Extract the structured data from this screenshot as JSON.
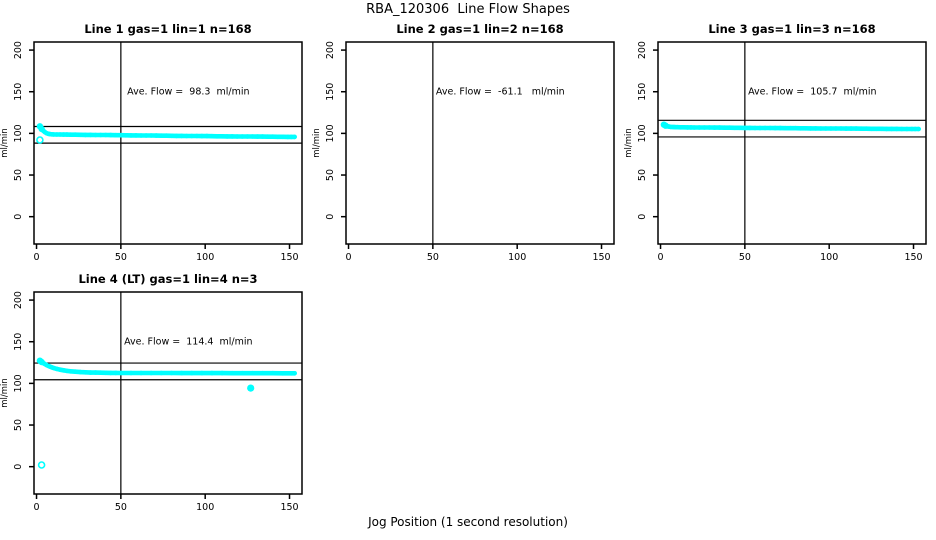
{
  "title": "RBA_120306  Line Flow Shapes",
  "xlabel": "Jog Position (1 second resolution)",
  "colors": {
    "point_color": "#00ffff",
    "axis_color": "#000000",
    "background": "#ffffff"
  },
  "chart_data": [
    {
      "type": "scatter",
      "position": "top-left",
      "title": "Line 1 gas=1 lin=1 n=168",
      "ave_flow": 98.3,
      "ave_flow_label": "Ave. Flow =  98.3  ml/min",
      "ylabel": "ml/min",
      "x_ticks": [
        0,
        50,
        100,
        150
      ],
      "y_ticks": [
        0,
        50,
        100,
        150,
        200
      ],
      "xlim": [
        -1.5,
        157.4
      ],
      "ylim": [
        -32.8,
        209.7
      ],
      "vline_x": 50,
      "hlines": [
        108.3,
        88.3
      ],
      "series_points": [
        [
          2,
          108.5
        ],
        [
          3,
          105.4
        ],
        [
          4,
          103.1
        ],
        [
          5,
          101.4
        ],
        [
          6,
          100.2
        ],
        [
          7,
          99.5
        ],
        [
          8,
          99.1
        ],
        [
          9,
          98.9
        ],
        [
          10,
          98.8
        ],
        [
          12,
          98.6
        ],
        [
          14,
          98.6
        ],
        [
          16,
          98.5
        ],
        [
          18,
          98.5
        ],
        [
          20,
          98.4
        ],
        [
          23,
          98.4
        ],
        [
          26,
          98.3
        ],
        [
          29,
          98.2
        ],
        [
          32,
          98.2
        ],
        [
          35,
          98.1
        ],
        [
          38,
          98.0
        ],
        [
          41,
          98.0
        ],
        [
          44,
          97.9
        ],
        [
          47,
          97.8
        ],
        [
          50,
          97.8
        ],
        [
          53,
          97.7
        ],
        [
          56,
          97.6
        ],
        [
          59,
          97.6
        ],
        [
          62,
          97.5
        ],
        [
          65,
          97.4
        ],
        [
          68,
          97.4
        ],
        [
          71,
          97.3
        ],
        [
          74,
          97.2
        ],
        [
          77,
          97.2
        ],
        [
          80,
          97.1
        ],
        [
          83,
          97.0
        ],
        [
          86,
          97.0
        ],
        [
          89,
          96.9
        ],
        [
          92,
          96.8
        ],
        [
          95,
          96.8
        ],
        [
          98,
          96.7
        ],
        [
          101,
          96.7
        ],
        [
          104,
          96.6
        ],
        [
          107,
          96.5
        ],
        [
          110,
          96.5
        ],
        [
          113,
          96.4
        ],
        [
          116,
          96.4
        ],
        [
          119,
          96.3
        ],
        [
          122,
          96.3
        ],
        [
          125,
          96.2
        ],
        [
          128,
          96.2
        ],
        [
          131,
          96.1
        ],
        [
          134,
          96.1
        ],
        [
          137,
          96.0
        ],
        [
          140,
          96.0
        ],
        [
          143,
          95.9
        ],
        [
          146,
          95.9
        ],
        [
          149,
          95.8
        ],
        [
          151,
          95.8
        ],
        [
          153,
          95.8
        ]
      ],
      "open_points": [
        [
          2,
          92
        ]
      ],
      "filled_outliers": []
    },
    {
      "type": "scatter",
      "position": "top-middle",
      "title": "Line 2 gas=1 lin=2 n=168",
      "ave_flow": -61.1,
      "ave_flow_label": "Ave. Flow =  -61.1   ml/min",
      "ylabel": "ml/min",
      "x_ticks": [
        0,
        50,
        100,
        150
      ],
      "y_ticks": [
        0,
        50,
        100,
        150,
        200
      ],
      "xlim": [
        -1.5,
        157.4
      ],
      "ylim": [
        -32.8,
        209.7
      ],
      "vline_x": 50,
      "hlines": [],
      "series_points": [],
      "open_points": [],
      "filled_outliers": []
    },
    {
      "type": "scatter",
      "position": "top-right",
      "title": "Line 3 gas=1 lin=3 n=168",
      "ave_flow": 105.7,
      "ave_flow_label": "Ave. Flow =  105.7  ml/min",
      "ylabel": "ml/min",
      "x_ticks": [
        0,
        50,
        100,
        150
      ],
      "y_ticks": [
        0,
        50,
        100,
        150,
        200
      ],
      "xlim": [
        -1.5,
        157.4
      ],
      "ylim": [
        -32.8,
        209.7
      ],
      "vline_x": 50,
      "hlines": [
        115.7,
        95.7
      ],
      "series_points": [
        [
          2,
          110.4
        ],
        [
          3,
          109.2
        ],
        [
          4,
          108.5
        ],
        [
          5,
          108.1
        ],
        [
          6,
          107.8
        ],
        [
          7,
          107.6
        ],
        [
          8,
          107.5
        ],
        [
          9,
          107.4
        ],
        [
          10,
          107.4
        ],
        [
          12,
          107.3
        ],
        [
          14,
          107.3
        ],
        [
          16,
          107.2
        ],
        [
          18,
          107.2
        ],
        [
          20,
          107.1
        ],
        [
          23,
          107.1
        ],
        [
          26,
          107.0
        ],
        [
          29,
          107.0
        ],
        [
          32,
          106.9
        ],
        [
          35,
          106.9
        ],
        [
          38,
          106.8
        ],
        [
          41,
          106.8
        ],
        [
          44,
          106.7
        ],
        [
          47,
          106.7
        ],
        [
          50,
          106.6
        ],
        [
          53,
          106.6
        ],
        [
          56,
          106.5
        ],
        [
          59,
          106.5
        ],
        [
          62,
          106.4
        ],
        [
          65,
          106.4
        ],
        [
          68,
          106.3
        ],
        [
          71,
          106.3
        ],
        [
          74,
          106.2
        ],
        [
          77,
          106.2
        ],
        [
          80,
          106.2
        ],
        [
          83,
          106.1
        ],
        [
          86,
          106.1
        ],
        [
          89,
          106.0
        ],
        [
          92,
          106.0
        ],
        [
          95,
          105.9
        ],
        [
          98,
          105.9
        ],
        [
          101,
          105.9
        ],
        [
          104,
          105.8
        ],
        [
          107,
          105.8
        ],
        [
          110,
          105.7
        ],
        [
          113,
          105.7
        ],
        [
          116,
          105.7
        ],
        [
          119,
          105.6
        ],
        [
          122,
          105.6
        ],
        [
          125,
          105.5
        ],
        [
          128,
          105.5
        ],
        [
          131,
          105.5
        ],
        [
          134,
          105.4
        ],
        [
          137,
          105.4
        ],
        [
          140,
          105.4
        ],
        [
          143,
          105.3
        ],
        [
          146,
          105.3
        ],
        [
          149,
          105.3
        ],
        [
          151,
          105.2
        ],
        [
          153,
          105.2
        ]
      ],
      "open_points": [],
      "filled_outliers": []
    },
    {
      "type": "scatter",
      "position": "bottom-left",
      "title": "Line 4 (LT) gas=1 lin=4 n=3",
      "ave_flow": 114.4,
      "ave_flow_label": "Ave. Flow =  114.4  ml/min",
      "ylabel": "ml/min",
      "x_ticks": [
        0,
        50,
        100,
        150
      ],
      "y_ticks": [
        0,
        50,
        100,
        150,
        200
      ],
      "xlim": [
        -1.5,
        157.4
      ],
      "ylim": [
        -32.8,
        209.7
      ],
      "vline_x": 50,
      "hlines": [
        124.4,
        104.4
      ],
      "series_points": [
        [
          2,
          127.2
        ],
        [
          3,
          125.7
        ],
        [
          4,
          124.3
        ],
        [
          5,
          123.1
        ],
        [
          6,
          121.9
        ],
        [
          7,
          121.0
        ],
        [
          8,
          120.1
        ],
        [
          9,
          119.3
        ],
        [
          10,
          118.6
        ],
        [
          12,
          117.4
        ],
        [
          14,
          116.4
        ],
        [
          16,
          115.7
        ],
        [
          18,
          115.0
        ],
        [
          20,
          114.5
        ],
        [
          23,
          114.0
        ],
        [
          26,
          113.6
        ],
        [
          29,
          113.3
        ],
        [
          32,
          113.0
        ],
        [
          35,
          112.9
        ],
        [
          38,
          112.8
        ],
        [
          41,
          112.7
        ],
        [
          44,
          112.6
        ],
        [
          47,
          112.6
        ],
        [
          50,
          112.5
        ],
        [
          56,
          112.5
        ],
        [
          62,
          112.4
        ],
        [
          68,
          112.4
        ],
        [
          74,
          112.4
        ],
        [
          80,
          112.4
        ],
        [
          86,
          112.3
        ],
        [
          92,
          112.3
        ],
        [
          98,
          112.3
        ],
        [
          104,
          112.3
        ],
        [
          110,
          112.3
        ],
        [
          116,
          112.2
        ],
        [
          122,
          112.2
        ],
        [
          128,
          112.2
        ],
        [
          134,
          112.2
        ],
        [
          140,
          112.2
        ],
        [
          146,
          112.1
        ],
        [
          151,
          112.1
        ],
        [
          153,
          112.1
        ]
      ],
      "open_points": [
        [
          3,
          2
        ]
      ],
      "filled_outliers": [
        [
          127,
          94.3
        ]
      ]
    }
  ]
}
